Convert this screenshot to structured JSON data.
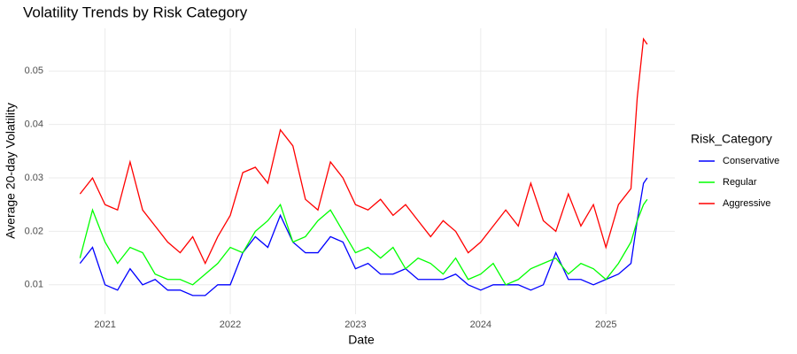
{
  "chart_data": {
    "type": "line",
    "title": "Volatility Trends by Risk Category",
    "x_label": "Date",
    "y_label": "Average 20-day Volatility",
    "legend_title": "Risk_Category",
    "legend_position": "right",
    "grid": true,
    "xlim": [
      2020.55,
      2025.55
    ],
    "ylim": [
      0.0045,
      0.058
    ],
    "xticks": [
      2021,
      2022,
      2023,
      2024,
      2025
    ],
    "yticks": [
      0.01,
      0.02,
      0.03,
      0.04,
      0.05
    ],
    "x": [
      2020.8,
      2020.9,
      2021.0,
      2021.1,
      2021.2,
      2021.3,
      2021.4,
      2021.5,
      2021.6,
      2021.7,
      2021.8,
      2021.9,
      2022.0,
      2022.1,
      2022.2,
      2022.3,
      2022.4,
      2022.5,
      2022.6,
      2022.7,
      2022.8,
      2022.9,
      2023.0,
      2023.1,
      2023.2,
      2023.3,
      2023.4,
      2023.5,
      2023.6,
      2023.7,
      2023.8,
      2023.9,
      2024.0,
      2024.1,
      2024.2,
      2024.3,
      2024.4,
      2024.5,
      2024.6,
      2024.7,
      2024.8,
      2024.9,
      2025.0,
      2025.1,
      2025.2,
      2025.25,
      2025.3,
      2025.33
    ],
    "series": [
      {
        "name": "Conservative",
        "color": "#0000ff",
        "values": [
          0.014,
          0.017,
          0.01,
          0.009,
          0.013,
          0.01,
          0.011,
          0.009,
          0.009,
          0.008,
          0.008,
          0.01,
          0.01,
          0.016,
          0.019,
          0.017,
          0.023,
          0.018,
          0.016,
          0.016,
          0.019,
          0.018,
          0.013,
          0.014,
          0.012,
          0.012,
          0.013,
          0.011,
          0.011,
          0.011,
          0.012,
          0.01,
          0.009,
          0.01,
          0.01,
          0.01,
          0.009,
          0.01,
          0.016,
          0.011,
          0.011,
          0.01,
          0.011,
          0.012,
          0.014,
          0.022,
          0.029,
          0.03
        ]
      },
      {
        "name": "Regular",
        "color": "#00ff00",
        "values": [
          0.015,
          0.024,
          0.018,
          0.014,
          0.017,
          0.016,
          0.012,
          0.011,
          0.011,
          0.01,
          0.012,
          0.014,
          0.017,
          0.016,
          0.02,
          0.022,
          0.025,
          0.018,
          0.019,
          0.022,
          0.024,
          0.02,
          0.016,
          0.017,
          0.015,
          0.017,
          0.013,
          0.015,
          0.014,
          0.012,
          0.015,
          0.011,
          0.012,
          0.014,
          0.01,
          0.011,
          0.013,
          0.014,
          0.015,
          0.012,
          0.014,
          0.013,
          0.011,
          0.014,
          0.018,
          0.022,
          0.025,
          0.026
        ]
      },
      {
        "name": "Aggressive",
        "color": "#ff0000",
        "values": [
          0.027,
          0.03,
          0.025,
          0.024,
          0.033,
          0.024,
          0.021,
          0.018,
          0.016,
          0.019,
          0.014,
          0.019,
          0.023,
          0.031,
          0.032,
          0.029,
          0.039,
          0.036,
          0.026,
          0.024,
          0.033,
          0.03,
          0.025,
          0.024,
          0.026,
          0.023,
          0.025,
          0.022,
          0.019,
          0.022,
          0.02,
          0.016,
          0.018,
          0.021,
          0.024,
          0.021,
          0.029,
          0.022,
          0.02,
          0.027,
          0.021,
          0.025,
          0.017,
          0.025,
          0.028,
          0.045,
          0.056,
          0.055
        ]
      }
    ]
  }
}
